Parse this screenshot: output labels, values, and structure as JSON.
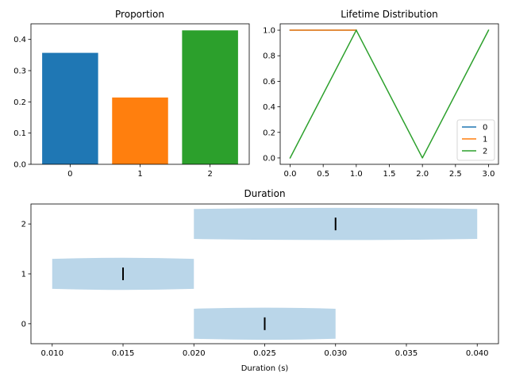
{
  "chart_data": [
    {
      "type": "bar",
      "title": "Proportion",
      "xlabel": "",
      "ylabel": "",
      "categories": [
        "0",
        "1",
        "2"
      ],
      "values": [
        0.357,
        0.214,
        0.429
      ],
      "colors": [
        "#1f77b4",
        "#ff7f0e",
        "#2ca02c"
      ],
      "ylim": [
        0,
        0.45
      ],
      "yticks": [
        0.0,
        0.1,
        0.2,
        0.3,
        0.4
      ],
      "ytick_labels": [
        "0.0",
        "0.1",
        "0.2",
        "0.3",
        "0.4"
      ],
      "grid": false
    },
    {
      "type": "line",
      "title": "Lifetime Distribution",
      "xlabel": "",
      "ylabel": "",
      "series": [
        {
          "name": "0",
          "color": "#1f77b4",
          "x": [
            0,
            1
          ],
          "y": [
            1.0,
            1.0
          ]
        },
        {
          "name": "1",
          "color": "#ff7f0e",
          "x": [
            0,
            1
          ],
          "y": [
            1.0,
            1.0
          ]
        },
        {
          "name": "2",
          "color": "#2ca02c",
          "x": [
            0,
            1,
            2,
            3
          ],
          "y": [
            0.0,
            1.0,
            0.0,
            1.0
          ]
        }
      ],
      "xlim": [
        -0.15,
        3.15
      ],
      "ylim": [
        -0.05,
        1.05
      ],
      "xticks": [
        0.0,
        0.5,
        1.0,
        1.5,
        2.0,
        2.5,
        3.0
      ],
      "xtick_labels": [
        "0.0",
        "0.5",
        "1.0",
        "1.5",
        "2.0",
        "2.5",
        "3.0"
      ],
      "yticks": [
        0.0,
        0.2,
        0.4,
        0.6,
        0.8,
        1.0
      ],
      "ytick_labels": [
        "0.0",
        "0.2",
        "0.4",
        "0.6",
        "0.8",
        "1.0"
      ],
      "legend": "lower-right",
      "grid": false
    },
    {
      "type": "violin",
      "orientation": "horizontal",
      "title": "Duration",
      "xlabel": "Duration (s)",
      "ylabel": "",
      "categories": [
        "0",
        "1",
        "2"
      ],
      "series": [
        {
          "name": "0",
          "min": 0.02,
          "max": 0.03,
          "median": 0.025
        },
        {
          "name": "1",
          "min": 0.01,
          "max": 0.02,
          "median": 0.015
        },
        {
          "name": "2",
          "min": 0.02,
          "max": 0.04,
          "median": 0.03
        }
      ],
      "body_color": "#bad6e9",
      "xlim": [
        0.0085,
        0.0415
      ],
      "ylim": [
        -0.4,
        2.4
      ],
      "xticks": [
        0.01,
        0.015,
        0.02,
        0.025,
        0.03,
        0.035,
        0.04
      ],
      "xtick_labels": [
        "0.010",
        "0.015",
        "0.020",
        "0.025",
        "0.030",
        "0.035",
        "0.040"
      ],
      "yticks": [
        0,
        1,
        2
      ],
      "ytick_labels": [
        "0",
        "1",
        "2"
      ],
      "grid": false
    }
  ]
}
